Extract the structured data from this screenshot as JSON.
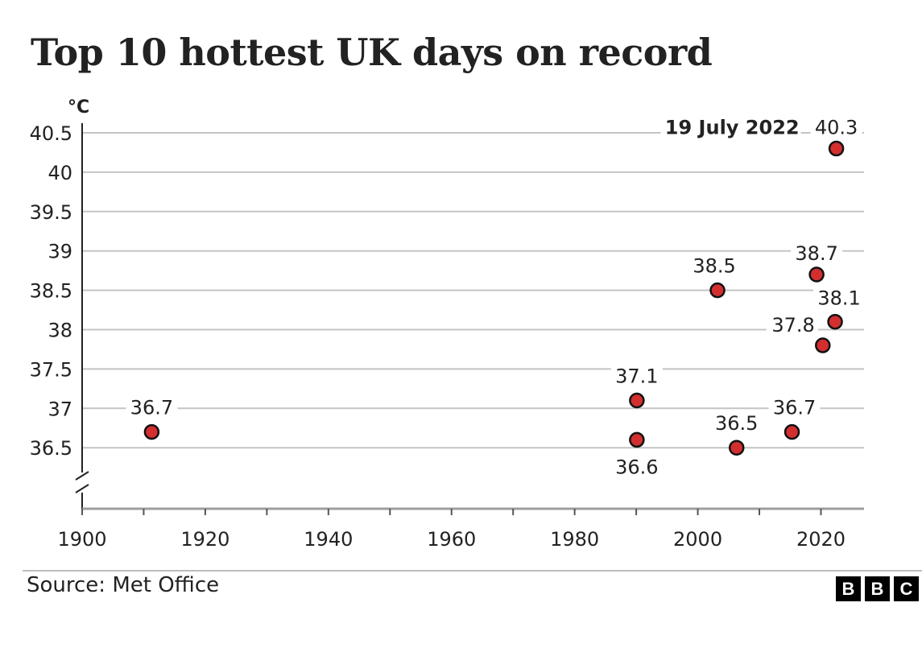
{
  "title": "Top 10 hottest UK days on record",
  "source": "Source: Met Office",
  "logo": "BBC",
  "chart_data": {
    "type": "scatter",
    "title": "Top 10 hottest UK days on record",
    "ylabel": "°C",
    "xlabel": "",
    "xlim": [
      1900,
      2027
    ],
    "ylim": [
      35.75,
      40.5
    ],
    "axis_break": true,
    "grid": "horizontal",
    "x_ticks": [
      1900,
      1920,
      1940,
      1960,
      1980,
      2000,
      2020
    ],
    "y_ticks": [
      36.5,
      37,
      37.5,
      38,
      38.5,
      39,
      39.5,
      40,
      40.5
    ],
    "x_tick_labels": [
      "1900",
      "1920",
      "1940",
      "1960",
      "1980",
      "2000",
      "2020"
    ],
    "y_tick_labels": [
      "36.5",
      "37",
      "37.5",
      "38",
      "38.5",
      "39",
      "39.5",
      "40",
      "40.5"
    ],
    "marker_color": "#d32f2f",
    "points": [
      {
        "x": 1911.3,
        "y": 36.7,
        "label": "36.7"
      },
      {
        "x": 1990.1,
        "y": 37.1,
        "label": "37.1"
      },
      {
        "x": 1990.1,
        "y": 36.6,
        "label": "36.6"
      },
      {
        "x": 2003.2,
        "y": 38.5,
        "label": "38.5"
      },
      {
        "x": 2006.3,
        "y": 36.5,
        "label": "36.5"
      },
      {
        "x": 2015.3,
        "y": 36.7,
        "label": "36.7"
      },
      {
        "x": 2019.3,
        "y": 38.7,
        "label": "38.7"
      },
      {
        "x": 2020.3,
        "y": 37.8,
        "label": "37.8"
      },
      {
        "x": 2022.3,
        "y": 38.1,
        "label": "38.1"
      },
      {
        "x": 2022.5,
        "y": 40.3,
        "label": "40.3"
      }
    ],
    "annotation": {
      "text": "19 July 2022",
      "point_index": 9
    }
  }
}
